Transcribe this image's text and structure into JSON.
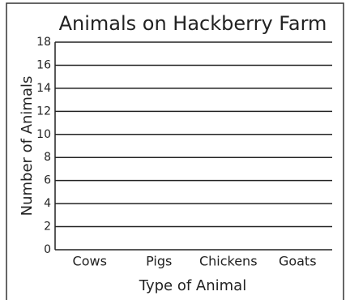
{
  "chart_data": {
    "type": "bar",
    "title": "Animals on Hackberry Farm",
    "x_label": "Type of Animal",
    "y_label": "Number of Animals",
    "categories": [
      "Cows",
      "Pigs",
      "Chickens",
      "Goats"
    ],
    "ylim": [
      0,
      18
    ],
    "yticks": [
      0,
      2,
      4,
      6,
      8,
      10,
      12,
      14,
      16,
      18
    ],
    "grid": true
  }
}
